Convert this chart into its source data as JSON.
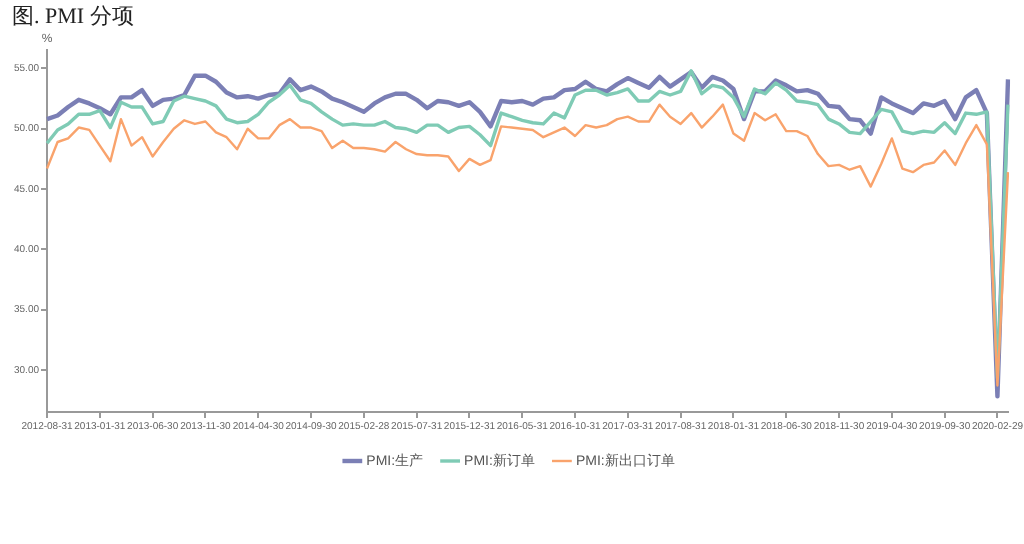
{
  "chart_data": {
    "type": "line",
    "title": "图. PMI 分项",
    "ylabel": "%",
    "categories": [
      "2012-08-31",
      null,
      null,
      null,
      null,
      "2013-01-31",
      null,
      null,
      null,
      null,
      "2013-06-30",
      null,
      null,
      null,
      null,
      "2013-11-30",
      null,
      null,
      null,
      null,
      "2014-04-30",
      null,
      null,
      null,
      null,
      "2014-09-30",
      null,
      null,
      null,
      null,
      "2015-02-28",
      null,
      null,
      null,
      null,
      "2015-07-31",
      null,
      null,
      null,
      null,
      "2015-12-31",
      null,
      null,
      null,
      null,
      "2016-05-31",
      null,
      null,
      null,
      null,
      "2016-10-31",
      null,
      null,
      null,
      null,
      "2017-03-31",
      null,
      null,
      null,
      null,
      "2017-08-31",
      null,
      null,
      null,
      null,
      "2018-01-31",
      null,
      null,
      null,
      null,
      "2018-06-30",
      null,
      null,
      null,
      null,
      "2018-11-30",
      null,
      null,
      null,
      null,
      "2019-04-30",
      null,
      null,
      null,
      null,
      "2019-09-30",
      null,
      null,
      null,
      null,
      "2020-02-29",
      null
    ],
    "series": [
      {
        "name": "PMI:生产",
        "color": "#7b7fb5",
        "values": [
          50.8,
          51.1,
          51.8,
          52.4,
          52.1,
          51.7,
          51.2,
          52.6,
          52.6,
          53.2,
          51.9,
          52.4,
          52.5,
          52.8,
          54.4,
          54.4,
          53.9,
          53.0,
          52.6,
          52.7,
          52.5,
          52.8,
          52.9,
          54.1,
          53.2,
          53.5,
          53.1,
          52.5,
          52.2,
          51.8,
          51.4,
          52.1,
          52.6,
          52.9,
          52.9,
          52.4,
          51.7,
          52.3,
          52.2,
          51.9,
          52.2,
          51.4,
          50.2,
          52.3,
          52.2,
          52.3,
          52.0,
          52.5,
          52.6,
          53.2,
          53.3,
          53.9,
          53.3,
          53.1,
          53.7,
          54.2,
          53.8,
          53.4,
          54.3,
          53.5,
          54.1,
          54.7,
          53.4,
          54.3,
          54.0,
          53.3,
          50.8,
          53.1,
          53.1,
          54.0,
          53.6,
          53.1,
          53.2,
          52.9,
          51.9,
          51.8,
          50.8,
          50.7,
          49.6,
          52.6,
          52.1,
          51.7,
          51.3,
          52.1,
          51.9,
          52.3,
          50.8,
          52.6,
          53.2,
          51.3,
          27.8,
          54.1
        ]
      },
      {
        "name": "PMI:新订单",
        "color": "#7fcbb5",
        "values": [
          48.8,
          49.9,
          50.4,
          51.2,
          51.2,
          51.5,
          50.1,
          52.2,
          51.8,
          51.8,
          50.4,
          50.6,
          52.3,
          52.7,
          52.5,
          52.3,
          51.9,
          50.8,
          50.5,
          50.6,
          51.2,
          52.2,
          52.8,
          53.6,
          52.4,
          52.1,
          51.4,
          50.8,
          50.3,
          50.4,
          50.3,
          50.3,
          50.6,
          50.1,
          50.0,
          49.7,
          50.3,
          50.3,
          49.7,
          50.1,
          50.2,
          49.5,
          48.6,
          51.3,
          51.0,
          50.7,
          50.5,
          50.4,
          51.3,
          50.9,
          52.8,
          53.2,
          53.2,
          52.8,
          53.0,
          53.3,
          52.3,
          52.3,
          53.1,
          52.8,
          53.1,
          54.8,
          52.9,
          53.6,
          53.4,
          52.6,
          51.0,
          53.3,
          52.9,
          53.8,
          53.2,
          52.3,
          52.2,
          52.0,
          50.8,
          50.4,
          49.7,
          49.6,
          50.6,
          51.6,
          51.4,
          49.8,
          49.6,
          49.8,
          49.7,
          50.5,
          49.6,
          51.3,
          51.2,
          51.4,
          29.3,
          52.0
        ]
      },
      {
        "name": "PMI:新出口订单",
        "color": "#f9a36c",
        "values": [
          46.7,
          48.9,
          49.2,
          50.1,
          49.9,
          48.6,
          47.3,
          50.8,
          48.6,
          49.3,
          47.7,
          48.9,
          50.0,
          50.7,
          50.4,
          50.6,
          49.7,
          49.3,
          48.3,
          50.0,
          49.2,
          49.2,
          50.3,
          50.8,
          50.1,
          50.1,
          49.8,
          48.4,
          49.0,
          48.4,
          48.4,
          48.3,
          48.1,
          48.9,
          48.3,
          47.9,
          47.8,
          47.8,
          47.7,
          46.5,
          47.5,
          47.0,
          47.4,
          50.2,
          50.1,
          50.0,
          49.9,
          49.3,
          49.7,
          50.1,
          49.4,
          50.3,
          50.1,
          50.3,
          50.8,
          51.0,
          50.6,
          50.6,
          52.0,
          51.0,
          50.4,
          51.3,
          50.1,
          51.0,
          52.0,
          49.6,
          49.0,
          51.3,
          50.7,
          51.2,
          49.8,
          49.8,
          49.4,
          47.9,
          46.9,
          47.0,
          46.6,
          46.9,
          45.2,
          47.1,
          49.2,
          46.7,
          46.4,
          47.0,
          47.2,
          48.2,
          47.0,
          48.8,
          50.3,
          48.7,
          28.7,
          46.4
        ]
      }
    ],
    "ylim": [
      26.5,
      56.5
    ],
    "yticks": [
      {
        "value": 30,
        "label": "30.00"
      },
      {
        "value": 35,
        "label": "35.00"
      },
      {
        "value": 40,
        "label": "40.00"
      },
      {
        "value": 45,
        "label": "45.00"
      },
      {
        "value": 50,
        "label": "50.00"
      },
      {
        "value": 55,
        "label": "55.00"
      }
    ],
    "grid": false,
    "legend": "bottom",
    "marker": "none",
    "line_style": "solid"
  }
}
